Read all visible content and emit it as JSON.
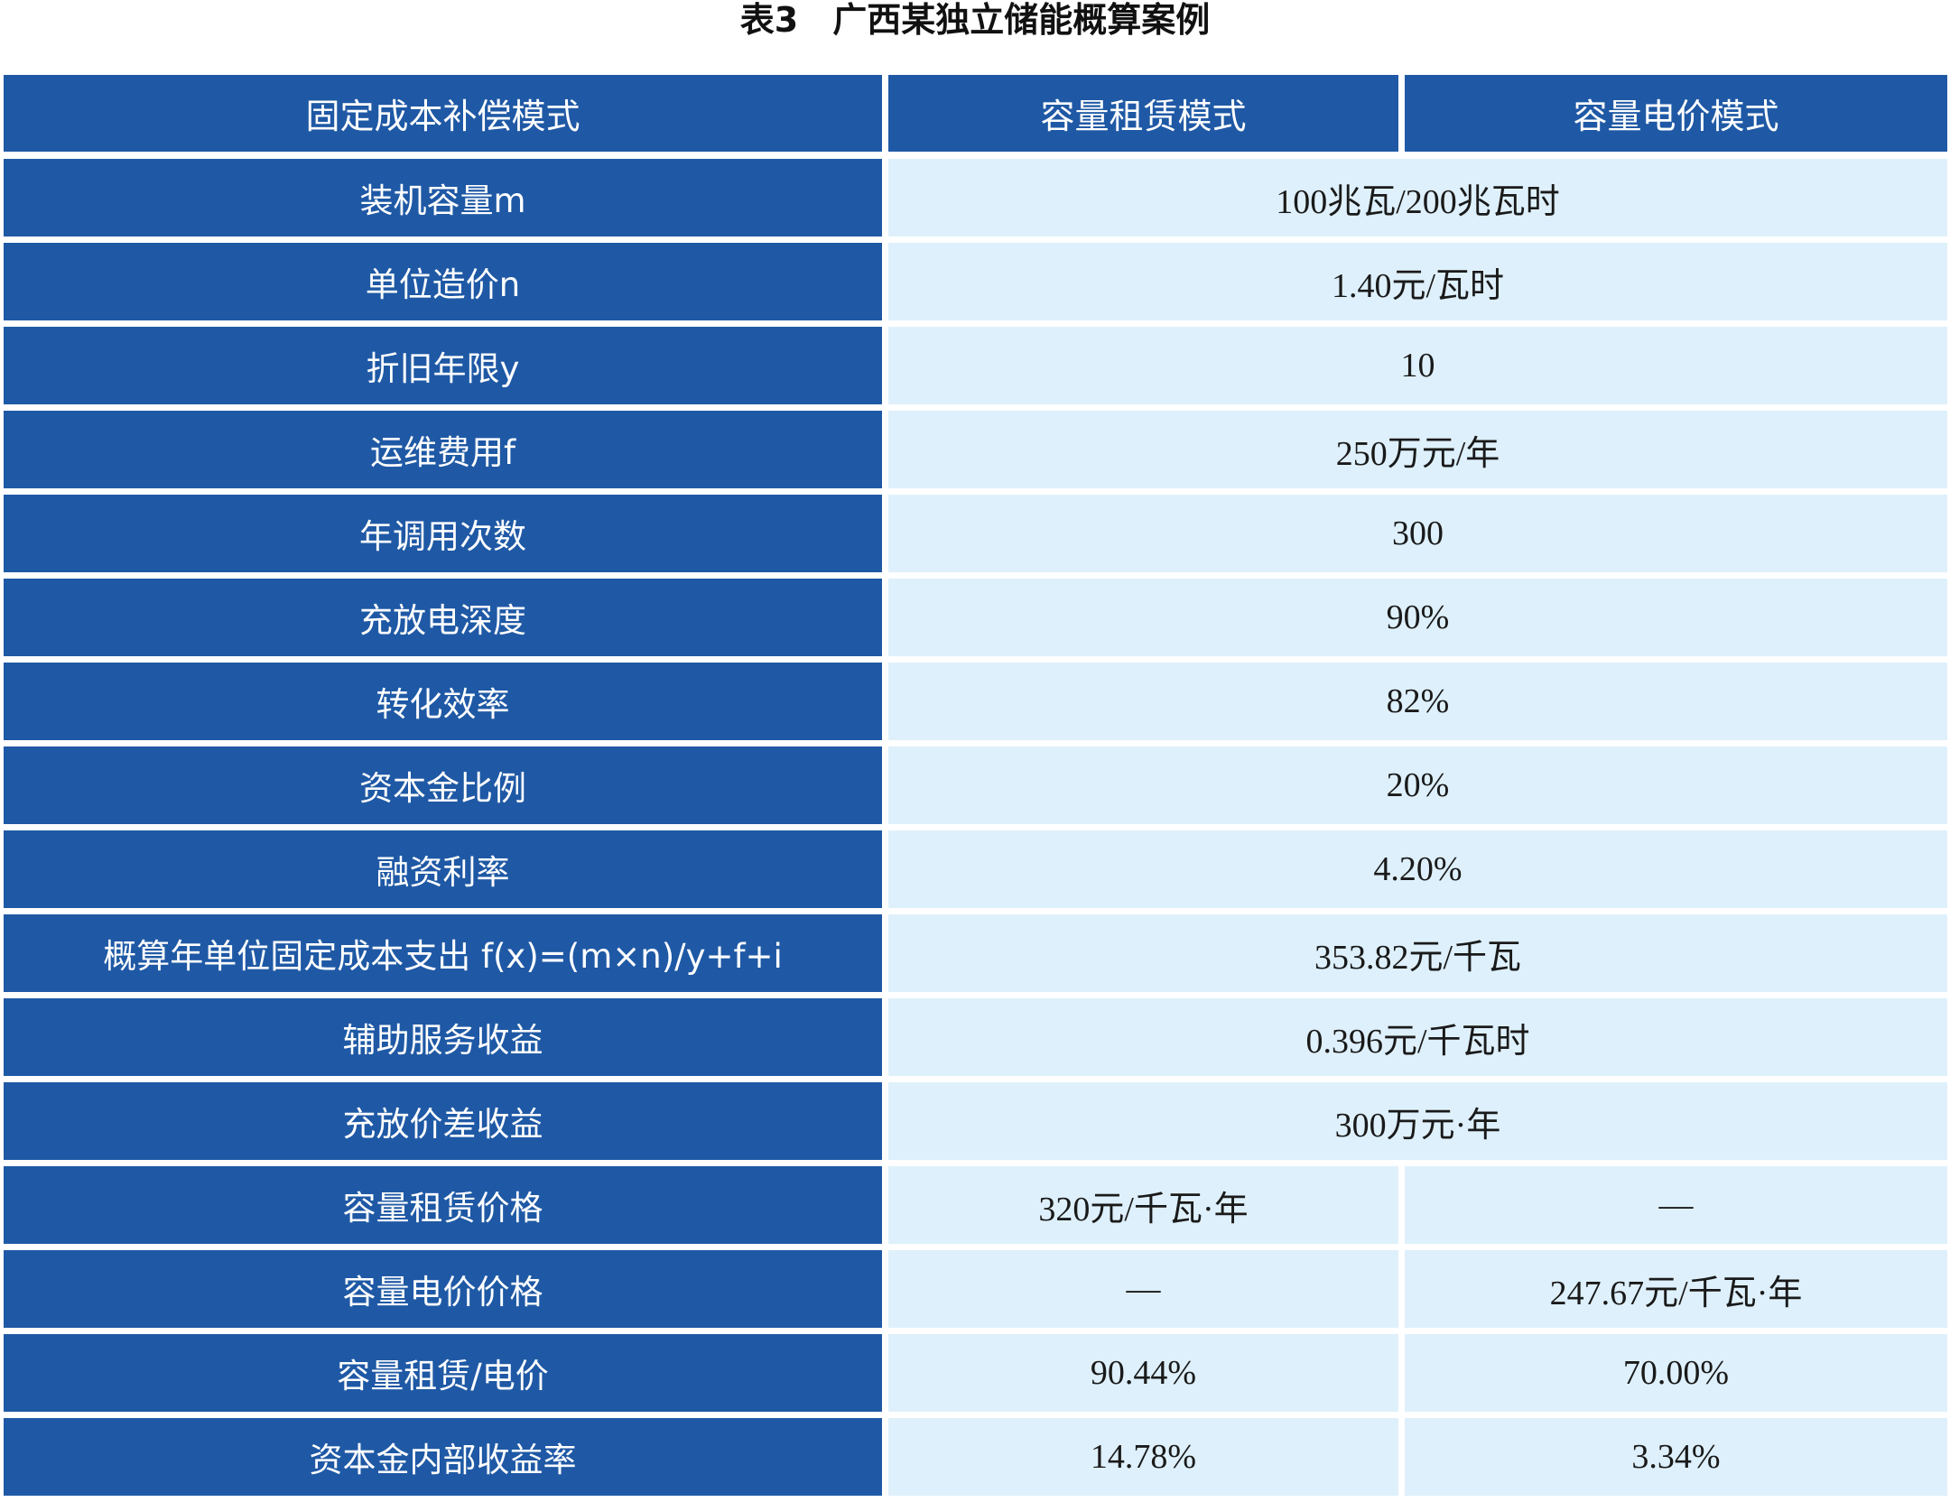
{
  "title": "表3　广西某独立储能概算案例",
  "colors": {
    "header_bg": "#1f59a5",
    "value_bg": "#def0fb"
  },
  "header": [
    "固定成本补偿模式",
    "容量租赁模式",
    "容量电价模式"
  ],
  "rows": [
    {
      "label": "装机容量m",
      "value": "100兆瓦/200兆瓦时"
    },
    {
      "label": "单位造价n",
      "value": "1.40元/瓦时"
    },
    {
      "label": "折旧年限y",
      "value": "10"
    },
    {
      "label": "运维费用f",
      "value": "250万元/年"
    },
    {
      "label": "年调用次数",
      "value": "300"
    },
    {
      "label": "充放电深度",
      "value": "90%"
    },
    {
      "label": "转化效率",
      "value": "82%"
    },
    {
      "label": "资本金比例",
      "value": "20%"
    },
    {
      "label": "融资利率",
      "value": "4.20%"
    },
    {
      "label": "概算年单位固定成本支出 f(x)=(m×n)/y+f+i",
      "value": "353.82元/千瓦"
    },
    {
      "label": "辅助服务收益",
      "value": "0.396元/千瓦时"
    },
    {
      "label": "充放价差收益",
      "value": "300万元·年"
    }
  ],
  "split_rows": [
    {
      "label": "容量租赁价格",
      "lease": "320元/千瓦·年",
      "price": "—"
    },
    {
      "label": "容量电价价格",
      "lease": "—",
      "price": "247.67元/千瓦·年"
    },
    {
      "label": "容量租赁/电价",
      "lease": "90.44%",
      "price": "70.00%"
    },
    {
      "label": "资本金内部收益率",
      "lease": "14.78%",
      "price": "3.34%"
    }
  ]
}
